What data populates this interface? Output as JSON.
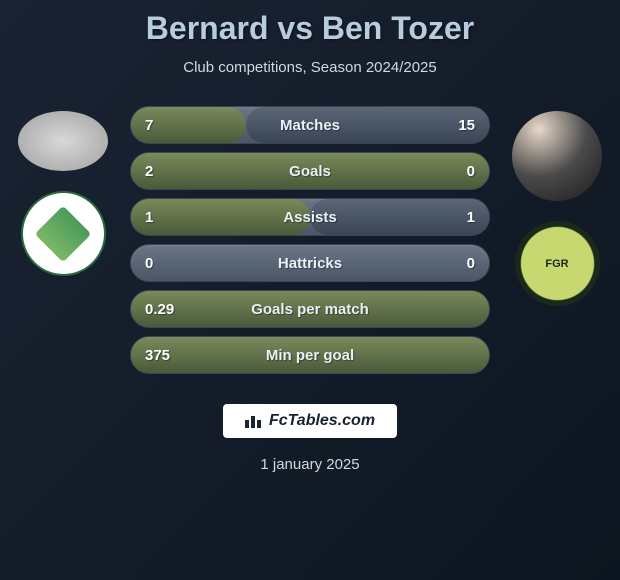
{
  "title": "Bernard vs Ben Tozer",
  "subtitle": "Club competitions, Season 2024/2025",
  "date": "1 january 2025",
  "footer_text": "FcTables.com",
  "colors": {
    "left_bar": "#4a5a3a",
    "right_bar": "#3a4555",
    "neutral_bar": "#4a5565"
  },
  "stats": [
    {
      "label": "Matches",
      "left_value": "7",
      "right_value": "15",
      "left_pct": 32,
      "right_pct": 68
    },
    {
      "label": "Goals",
      "left_value": "2",
      "right_value": "0",
      "left_pct": 100,
      "right_pct": 0
    },
    {
      "label": "Assists",
      "left_value": "1",
      "right_value": "1",
      "left_pct": 50,
      "right_pct": 50
    },
    {
      "label": "Hattricks",
      "left_value": "0",
      "right_value": "0",
      "left_pct": 0,
      "right_pct": 0
    },
    {
      "label": "Goals per match",
      "left_value": "0.29",
      "right_value": "",
      "left_pct": 100,
      "right_pct": 0
    },
    {
      "label": "Min per goal",
      "left_value": "375",
      "right_value": "",
      "left_pct": 100,
      "right_pct": 0
    }
  ]
}
